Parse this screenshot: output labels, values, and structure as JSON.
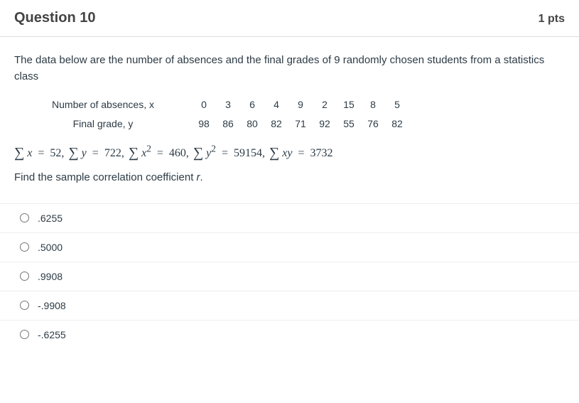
{
  "header": {
    "title": "Question 10",
    "points": "1 pts"
  },
  "intro": "The data below are the number of absences and the final grades of 9 randomly chosen students from a statistics class",
  "table": {
    "rows": [
      {
        "label": "Number of absences, x",
        "cells": [
          "0",
          "3",
          "6",
          "4",
          "9",
          "2",
          "15",
          "8",
          "5"
        ]
      },
      {
        "label": "Final grade, y",
        "cells": [
          "98",
          "86",
          "80",
          "82",
          "71",
          "92",
          "55",
          "76",
          "82"
        ]
      }
    ]
  },
  "sums": {
    "sx_label": "x",
    "sx_val": "52,",
    "sy_label": "y",
    "sy_val": "722,",
    "sx2_label": "x",
    "sx2_val": "460,",
    "sy2_label": "y",
    "sy2_val": "59154,",
    "sxy_label": "xy",
    "sxy_val": "3732"
  },
  "find_pre": "Find the sample correlation coefficient ",
  "find_var": "r",
  "find_post": ".",
  "options": [
    {
      "label": ".6255"
    },
    {
      "label": ".5000"
    },
    {
      "label": ".9908"
    },
    {
      "label": "-.9908"
    },
    {
      "label": "-.6255"
    }
  ],
  "colors": {
    "text": "#2d3b45",
    "border": "#ddd",
    "option_border": "#eee"
  }
}
